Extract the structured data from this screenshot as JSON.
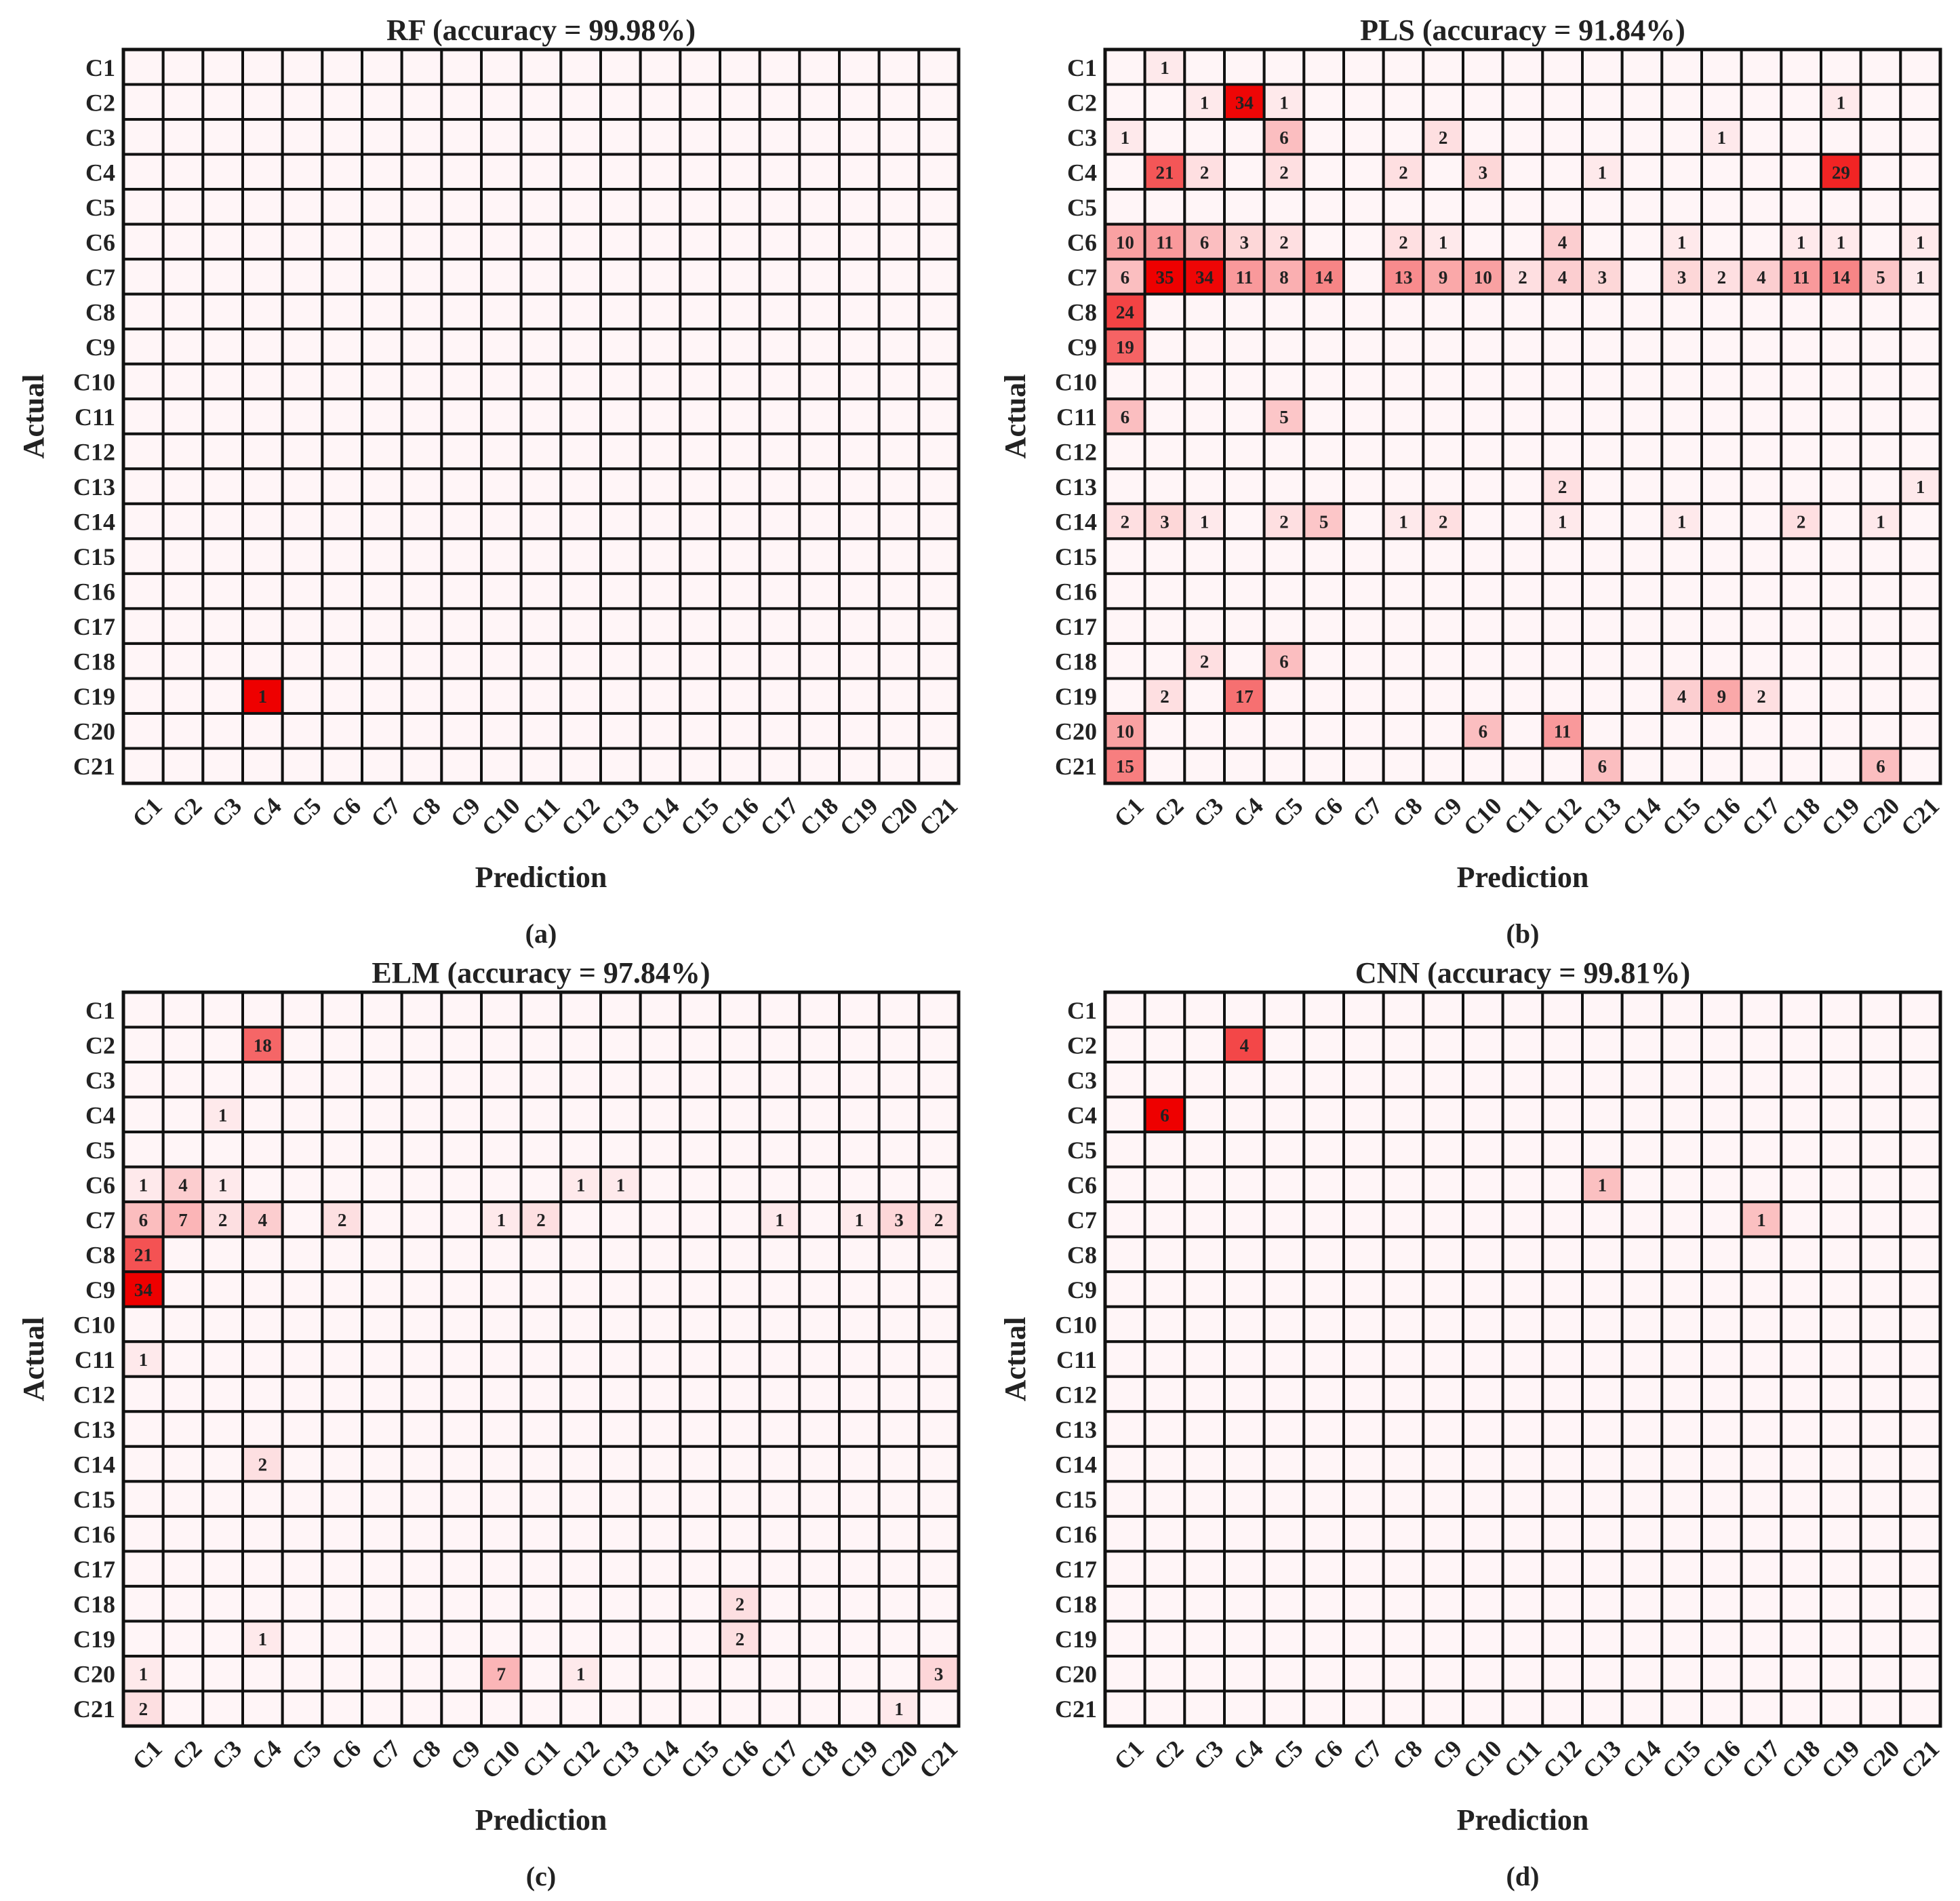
{
  "figure": {
    "panels": [
      {
        "title": "RF (accuracy = 99.98%)",
        "label": "(a)"
      },
      {
        "title": "PLS (accuracy = 91.84%)",
        "label": "(b)"
      },
      {
        "title": "ELM (accuracy = 97.84%)",
        "label": "(c)"
      },
      {
        "title": "CNN (accuracy = 99.81%)",
        "label": "(d)"
      }
    ]
  },
  "colors": {
    "empty": "#fff5f7",
    "max": "#ee0000",
    "grid": "#111111"
  },
  "chart_data": [
    {
      "type": "heatmap",
      "title": "RF (accuracy = 99.98%)",
      "xlabel": "Prediction",
      "ylabel": "Actual",
      "x_categories": [
        "C1",
        "C2",
        "C3",
        "C4",
        "C5",
        "C6",
        "C7",
        "C8",
        "C9",
        "C10",
        "C11",
        "C12",
        "C13",
        "C14",
        "C15",
        "C16",
        "C17",
        "C18",
        "C19",
        "C20",
        "C21"
      ],
      "y_categories": [
        "C1",
        "C2",
        "C3",
        "C4",
        "C5",
        "C6",
        "C7",
        "C8",
        "C9",
        "C10",
        "C11",
        "C12",
        "C13",
        "C14",
        "C15",
        "C16",
        "C17",
        "C18",
        "C19",
        "C20",
        "C21"
      ],
      "cells": [
        {
          "actual": "C19",
          "prediction": "C4",
          "value": 1
        }
      ]
    },
    {
      "type": "heatmap",
      "title": "PLS (accuracy = 91.84%)",
      "xlabel": "Prediction",
      "ylabel": "Actual",
      "x_categories": [
        "C1",
        "C2",
        "C3",
        "C4",
        "C5",
        "C6",
        "C7",
        "C8",
        "C9",
        "C10",
        "C11",
        "C12",
        "C13",
        "C14",
        "C15",
        "C16",
        "C17",
        "C18",
        "C19",
        "C20",
        "C21"
      ],
      "y_categories": [
        "C1",
        "C2",
        "C3",
        "C4",
        "C5",
        "C6",
        "C7",
        "C8",
        "C9",
        "C10",
        "C11",
        "C12",
        "C13",
        "C14",
        "C15",
        "C16",
        "C17",
        "C18",
        "C19",
        "C20",
        "C21"
      ],
      "cells": [
        {
          "actual": "C1",
          "prediction": "C2",
          "value": 1
        },
        {
          "actual": "C2",
          "prediction": "C3",
          "value": 1
        },
        {
          "actual": "C2",
          "prediction": "C4",
          "value": 34
        },
        {
          "actual": "C2",
          "prediction": "C5",
          "value": 1
        },
        {
          "actual": "C2",
          "prediction": "C19",
          "value": 1
        },
        {
          "actual": "C3",
          "prediction": "C1",
          "value": 1
        },
        {
          "actual": "C3",
          "prediction": "C5",
          "value": 6
        },
        {
          "actual": "C3",
          "prediction": "C9",
          "value": 2
        },
        {
          "actual": "C3",
          "prediction": "C16",
          "value": 1
        },
        {
          "actual": "C4",
          "prediction": "C2",
          "value": 21
        },
        {
          "actual": "C4",
          "prediction": "C3",
          "value": 2
        },
        {
          "actual": "C4",
          "prediction": "C5",
          "value": 2
        },
        {
          "actual": "C4",
          "prediction": "C8",
          "value": 2
        },
        {
          "actual": "C4",
          "prediction": "C10",
          "value": 3
        },
        {
          "actual": "C4",
          "prediction": "C13",
          "value": 1
        },
        {
          "actual": "C4",
          "prediction": "C19",
          "value": 29
        },
        {
          "actual": "C6",
          "prediction": "C1",
          "value": 10
        },
        {
          "actual": "C6",
          "prediction": "C2",
          "value": 11
        },
        {
          "actual": "C6",
          "prediction": "C3",
          "value": 6
        },
        {
          "actual": "C6",
          "prediction": "C4",
          "value": 3
        },
        {
          "actual": "C6",
          "prediction": "C5",
          "value": 2
        },
        {
          "actual": "C6",
          "prediction": "C8",
          "value": 2
        },
        {
          "actual": "C6",
          "prediction": "C9",
          "value": 1
        },
        {
          "actual": "C6",
          "prediction": "C12",
          "value": 4
        },
        {
          "actual": "C6",
          "prediction": "C15",
          "value": 1
        },
        {
          "actual": "C6",
          "prediction": "C18",
          "value": 1
        },
        {
          "actual": "C6",
          "prediction": "C19",
          "value": 1
        },
        {
          "actual": "C6",
          "prediction": "C21",
          "value": 1
        },
        {
          "actual": "C7",
          "prediction": "C1",
          "value": 6
        },
        {
          "actual": "C7",
          "prediction": "C2",
          "value": 35
        },
        {
          "actual": "C7",
          "prediction": "C3",
          "value": 34
        },
        {
          "actual": "C7",
          "prediction": "C4",
          "value": 11
        },
        {
          "actual": "C7",
          "prediction": "C5",
          "value": 8
        },
        {
          "actual": "C7",
          "prediction": "C6",
          "value": 14
        },
        {
          "actual": "C7",
          "prediction": "C8",
          "value": 13
        },
        {
          "actual": "C7",
          "prediction": "C9",
          "value": 9
        },
        {
          "actual": "C7",
          "prediction": "C10",
          "value": 10
        },
        {
          "actual": "C7",
          "prediction": "C11",
          "value": 2
        },
        {
          "actual": "C7",
          "prediction": "C12",
          "value": 4
        },
        {
          "actual": "C7",
          "prediction": "C13",
          "value": 3
        },
        {
          "actual": "C7",
          "prediction": "C15",
          "value": 3
        },
        {
          "actual": "C7",
          "prediction": "C16",
          "value": 2
        },
        {
          "actual": "C7",
          "prediction": "C17",
          "value": 4
        },
        {
          "actual": "C7",
          "prediction": "C18",
          "value": 11
        },
        {
          "actual": "C7",
          "prediction": "C19",
          "value": 14
        },
        {
          "actual": "C7",
          "prediction": "C20",
          "value": 5
        },
        {
          "actual": "C7",
          "prediction": "C21",
          "value": 1
        },
        {
          "actual": "C8",
          "prediction": "C1",
          "value": 24
        },
        {
          "actual": "C9",
          "prediction": "C1",
          "value": 19
        },
        {
          "actual": "C11",
          "prediction": "C1",
          "value": 6
        },
        {
          "actual": "C11",
          "prediction": "C5",
          "value": 5
        },
        {
          "actual": "C13",
          "prediction": "C12",
          "value": 2
        },
        {
          "actual": "C13",
          "prediction": "C21",
          "value": 1
        },
        {
          "actual": "C14",
          "prediction": "C1",
          "value": 2
        },
        {
          "actual": "C14",
          "prediction": "C2",
          "value": 3
        },
        {
          "actual": "C14",
          "prediction": "C3",
          "value": 1
        },
        {
          "actual": "C14",
          "prediction": "C5",
          "value": 2
        },
        {
          "actual": "C14",
          "prediction": "C6",
          "value": 5
        },
        {
          "actual": "C14",
          "prediction": "C8",
          "value": 1
        },
        {
          "actual": "C14",
          "prediction": "C9",
          "value": 2
        },
        {
          "actual": "C14",
          "prediction": "C12",
          "value": 1
        },
        {
          "actual": "C14",
          "prediction": "C15",
          "value": 1
        },
        {
          "actual": "C14",
          "prediction": "C18",
          "value": 2
        },
        {
          "actual": "C14",
          "prediction": "C20",
          "value": 1
        },
        {
          "actual": "C18",
          "prediction": "C3",
          "value": 2
        },
        {
          "actual": "C18",
          "prediction": "C5",
          "value": 6
        },
        {
          "actual": "C19",
          "prediction": "C2",
          "value": 2
        },
        {
          "actual": "C19",
          "prediction": "C4",
          "value": 17
        },
        {
          "actual": "C19",
          "prediction": "C15",
          "value": 4
        },
        {
          "actual": "C19",
          "prediction": "C16",
          "value": 9
        },
        {
          "actual": "C19",
          "prediction": "C17",
          "value": 2
        },
        {
          "actual": "C20",
          "prediction": "C1",
          "value": 10
        },
        {
          "actual": "C20",
          "prediction": "C10",
          "value": 6
        },
        {
          "actual": "C20",
          "prediction": "C12",
          "value": 11
        },
        {
          "actual": "C21",
          "prediction": "C1",
          "value": 15
        },
        {
          "actual": "C21",
          "prediction": "C13",
          "value": 6
        },
        {
          "actual": "C21",
          "prediction": "C20",
          "value": 6
        }
      ]
    },
    {
      "type": "heatmap",
      "title": "ELM (accuracy = 97.84%)",
      "xlabel": "Prediction",
      "ylabel": "Actual",
      "x_categories": [
        "C1",
        "C2",
        "C3",
        "C4",
        "C5",
        "C6",
        "C7",
        "C8",
        "C9",
        "C10",
        "C11",
        "C12",
        "C13",
        "C14",
        "C15",
        "C16",
        "C17",
        "C18",
        "C19",
        "C20",
        "C21"
      ],
      "y_categories": [
        "C1",
        "C2",
        "C3",
        "C4",
        "C5",
        "C6",
        "C7",
        "C8",
        "C9",
        "C10",
        "C11",
        "C12",
        "C13",
        "C14",
        "C15",
        "C16",
        "C17",
        "C18",
        "C19",
        "C20",
        "C21"
      ],
      "cells": [
        {
          "actual": "C2",
          "prediction": "C4",
          "value": 18
        },
        {
          "actual": "C4",
          "prediction": "C3",
          "value": 1
        },
        {
          "actual": "C6",
          "prediction": "C1",
          "value": 1
        },
        {
          "actual": "C6",
          "prediction": "C2",
          "value": 4
        },
        {
          "actual": "C6",
          "prediction": "C3",
          "value": 1
        },
        {
          "actual": "C6",
          "prediction": "C12",
          "value": 1
        },
        {
          "actual": "C6",
          "prediction": "C13",
          "value": 1
        },
        {
          "actual": "C7",
          "prediction": "C1",
          "value": 6
        },
        {
          "actual": "C7",
          "prediction": "C2",
          "value": 7
        },
        {
          "actual": "C7",
          "prediction": "C3",
          "value": 2
        },
        {
          "actual": "C7",
          "prediction": "C4",
          "value": 4
        },
        {
          "actual": "C7",
          "prediction": "C6",
          "value": 2
        },
        {
          "actual": "C7",
          "prediction": "C10",
          "value": 1
        },
        {
          "actual": "C7",
          "prediction": "C11",
          "value": 2
        },
        {
          "actual": "C7",
          "prediction": "C17",
          "value": 1
        },
        {
          "actual": "C7",
          "prediction": "C19",
          "value": 1
        },
        {
          "actual": "C7",
          "prediction": "C20",
          "value": 3
        },
        {
          "actual": "C7",
          "prediction": "C21",
          "value": 2
        },
        {
          "actual": "C8",
          "prediction": "C1",
          "value": 21
        },
        {
          "actual": "C9",
          "prediction": "C1",
          "value": 34
        },
        {
          "actual": "C11",
          "prediction": "C1",
          "value": 1
        },
        {
          "actual": "C14",
          "prediction": "C4",
          "value": 2
        },
        {
          "actual": "C18",
          "prediction": "C16",
          "value": 2
        },
        {
          "actual": "C19",
          "prediction": "C4",
          "value": 1
        },
        {
          "actual": "C19",
          "prediction": "C16",
          "value": 2
        },
        {
          "actual": "C20",
          "prediction": "C1",
          "value": 1
        },
        {
          "actual": "C20",
          "prediction": "C10",
          "value": 7
        },
        {
          "actual": "C20",
          "prediction": "C12",
          "value": 1
        },
        {
          "actual": "C20",
          "prediction": "C21",
          "value": 3
        },
        {
          "actual": "C21",
          "prediction": "C1",
          "value": 2
        },
        {
          "actual": "C21",
          "prediction": "C20",
          "value": 1
        }
      ]
    },
    {
      "type": "heatmap",
      "title": "CNN (accuracy = 99.81%)",
      "xlabel": "Prediction",
      "ylabel": "Actual",
      "x_categories": [
        "C1",
        "C2",
        "C3",
        "C4",
        "C5",
        "C6",
        "C7",
        "C8",
        "C9",
        "C10",
        "C11",
        "C12",
        "C13",
        "C14",
        "C15",
        "C16",
        "C17",
        "C18",
        "C19",
        "C20",
        "C21"
      ],
      "y_categories": [
        "C1",
        "C2",
        "C3",
        "C4",
        "C5",
        "C6",
        "C7",
        "C8",
        "C9",
        "C10",
        "C11",
        "C12",
        "C13",
        "C14",
        "C15",
        "C16",
        "C17",
        "C18",
        "C19",
        "C20",
        "C21"
      ],
      "cells": [
        {
          "actual": "C2",
          "prediction": "C4",
          "value": 4
        },
        {
          "actual": "C4",
          "prediction": "C2",
          "value": 6
        },
        {
          "actual": "C6",
          "prediction": "C13",
          "value": 1
        },
        {
          "actual": "C7",
          "prediction": "C17",
          "value": 1
        }
      ]
    }
  ]
}
